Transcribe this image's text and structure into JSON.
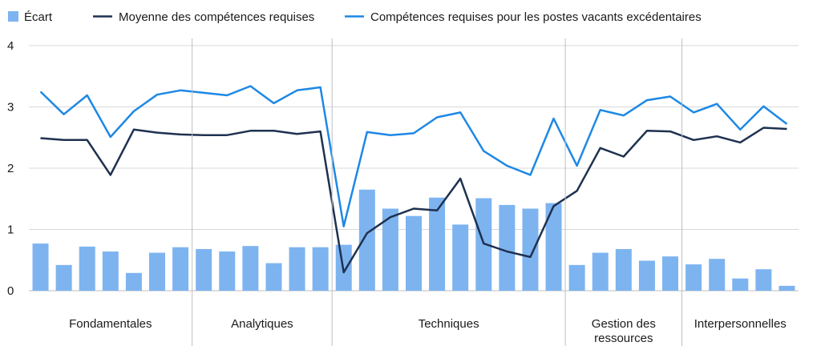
{
  "chart_data": {
    "type": "bar",
    "ylim": [
      0,
      4
    ],
    "y_ticks": [
      "0",
      "1",
      "2",
      "3",
      "4"
    ],
    "grid": true,
    "legend_position": "top-left",
    "colors": {
      "bar": "#7db4f0",
      "dark_line": "#1e3150",
      "light_line": "#1e88e5",
      "grid": "#d9d9d9",
      "separator": "#bfbfbf"
    },
    "legend": [
      {
        "label": "Écart",
        "kind": "bar"
      },
      {
        "label": "Moyenne des compétences requises",
        "kind": "dark_line"
      },
      {
        "label": "Compétences requises pour les postes vacants excédentaires",
        "kind": "light_line"
      }
    ],
    "groups": [
      {
        "lines": [
          "Fondamentales"
        ],
        "count": 7
      },
      {
        "lines": [
          "Analytiques"
        ],
        "count": 6
      },
      {
        "lines": [
          "Techniques"
        ],
        "count": 10
      },
      {
        "lines": [
          "Gestion des",
          "ressources"
        ],
        "count": 5
      },
      {
        "lines": [
          "Interpersonnelles"
        ],
        "count": 5
      }
    ],
    "series": [
      {
        "name": "Écart",
        "kind": "bar",
        "values": [
          0.77,
          0.42,
          0.72,
          0.64,
          0.29,
          0.62,
          0.71,
          0.68,
          0.64,
          0.73,
          0.45,
          0.71,
          0.71,
          0.75,
          1.65,
          1.34,
          1.22,
          1.52,
          1.08,
          1.51,
          1.4,
          1.34,
          1.43,
          0.42,
          0.62,
          0.68,
          0.49,
          0.56,
          0.43,
          0.52,
          0.2,
          0.35,
          0.08
        ]
      },
      {
        "name": "Moyenne des compétences requises",
        "kind": "dark_line",
        "values": [
          2.49,
          2.46,
          2.46,
          1.89,
          2.63,
          2.58,
          2.55,
          2.54,
          2.54,
          2.61,
          2.61,
          2.56,
          2.6,
          0.3,
          0.94,
          1.2,
          1.34,
          1.31,
          1.83,
          0.77,
          0.64,
          0.55,
          1.38,
          1.63,
          2.33,
          2.19,
          2.61,
          2.6,
          2.46,
          2.52,
          2.42,
          2.66,
          2.64
        ]
      },
      {
        "name": "Compétences requises pour les postes vacants excédentaires",
        "kind": "light_line",
        "values": [
          3.25,
          2.88,
          3.19,
          2.51,
          2.93,
          3.2,
          3.27,
          3.23,
          3.19,
          3.34,
          3.06,
          3.27,
          3.32,
          1.05,
          2.59,
          2.54,
          2.57,
          2.83,
          2.91,
          2.28,
          2.04,
          1.89,
          2.81,
          2.04,
          2.95,
          2.86,
          3.11,
          3.17,
          2.91,
          3.05,
          2.63,
          3.01,
          2.72
        ]
      }
    ]
  }
}
